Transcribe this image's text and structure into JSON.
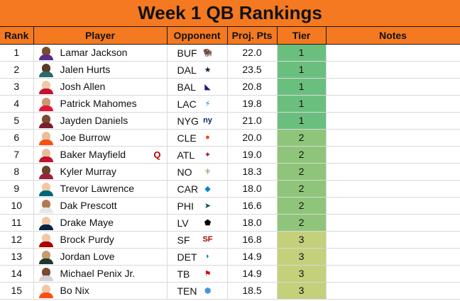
{
  "title": "Week 1 QB Rankings",
  "columns": {
    "rank": "Rank",
    "player": "Player",
    "opponent": "Opponent",
    "proj": "Proj. Pts",
    "tier": "Tier",
    "notes": "Notes"
  },
  "colors": {
    "header_orange": "#f47920",
    "tier1": "#6bbf7e",
    "tier2": "#8fc57a",
    "tier3": "#c4d07a",
    "injury_red": "#c00000"
  },
  "rows": [
    {
      "rank": "1",
      "player": "Lamar Jackson",
      "injury": "",
      "opp": "BUF",
      "logo_icon": "bills-logo-icon",
      "proj": "22.0",
      "tier": "1"
    },
    {
      "rank": "2",
      "player": "Jalen Hurts",
      "injury": "",
      "opp": "DAL",
      "logo_icon": "cowboys-logo-icon",
      "proj": "23.5",
      "tier": "1"
    },
    {
      "rank": "3",
      "player": "Josh Allen",
      "injury": "",
      "opp": "BAL",
      "logo_icon": "ravens-logo-icon",
      "proj": "20.8",
      "tier": "1"
    },
    {
      "rank": "4",
      "player": "Patrick Mahomes",
      "injury": "",
      "opp": "LAC",
      "logo_icon": "chargers-logo-icon",
      "proj": "19.8",
      "tier": "1"
    },
    {
      "rank": "5",
      "player": "Jayden Daniels",
      "injury": "",
      "opp": "NYG",
      "logo_icon": "giants-logo-icon",
      "proj": "21.0",
      "tier": "1"
    },
    {
      "rank": "6",
      "player": "Joe Burrow",
      "injury": "",
      "opp": "CLE",
      "logo_icon": "browns-logo-icon",
      "proj": "20.0",
      "tier": "2"
    },
    {
      "rank": "7",
      "player": "Baker Mayfield",
      "injury": "Q",
      "opp": "ATL",
      "logo_icon": "falcons-logo-icon",
      "proj": "19.0",
      "tier": "2"
    },
    {
      "rank": "8",
      "player": "Kyler Murray",
      "injury": "",
      "opp": "NO",
      "logo_icon": "saints-logo-icon",
      "proj": "18.3",
      "tier": "2"
    },
    {
      "rank": "9",
      "player": "Trevor Lawrence",
      "injury": "",
      "opp": "CAR",
      "logo_icon": "panthers-logo-icon",
      "proj": "18.0",
      "tier": "2"
    },
    {
      "rank": "10",
      "player": "Dak Prescott",
      "injury": "",
      "opp": "PHI",
      "logo_icon": "eagles-logo-icon",
      "proj": "16.6",
      "tier": "2"
    },
    {
      "rank": "11",
      "player": "Drake Maye",
      "injury": "",
      "opp": "LV",
      "logo_icon": "raiders-logo-icon",
      "proj": "18.0",
      "tier": "2"
    },
    {
      "rank": "12",
      "player": "Brock Purdy",
      "injury": "",
      "opp": "SF",
      "logo_icon": "49ers-logo-icon",
      "proj": "16.8",
      "tier": "3"
    },
    {
      "rank": "13",
      "player": "Jordan Love",
      "injury": "",
      "opp": "DET",
      "logo_icon": "lions-logo-icon",
      "proj": "14.9",
      "tier": "3"
    },
    {
      "rank": "14",
      "player": "Michael Penix Jr.",
      "injury": "",
      "opp": "TB",
      "logo_icon": "buccaneers-logo-icon",
      "proj": "14.9",
      "tier": "3"
    },
    {
      "rank": "15",
      "player": "Bo Nix",
      "injury": "",
      "opp": "TEN",
      "logo_icon": "titans-logo-icon",
      "proj": "18.5",
      "tier": "3"
    }
  ]
}
